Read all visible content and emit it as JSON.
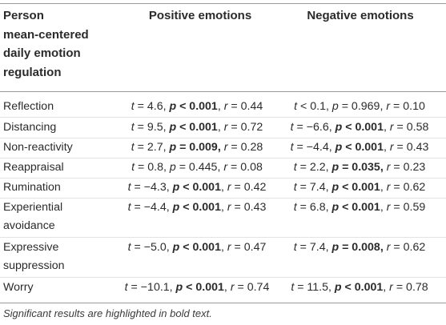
{
  "table": {
    "header": {
      "label_lines": [
        "Person",
        "mean-centered",
        "daily emotion",
        "regulation"
      ],
      "positive": "Positive emotions",
      "negative": "Negative emotions"
    },
    "rows": [
      {
        "label": "Reflection",
        "positive": {
          "t_op": "=",
          "t": "4.6",
          "p_op": "<",
          "p": "0.001",
          "p_bold": true,
          "r": "0.44"
        },
        "negative": {
          "t_op": "<",
          "t": "0.1",
          "p_op": "=",
          "p": "0.969",
          "p_bold": false,
          "r": "0.10"
        }
      },
      {
        "label": "Distancing",
        "positive": {
          "t_op": "=",
          "t": "9.5",
          "p_op": "<",
          "p": "0.001",
          "p_bold": true,
          "r": "0.72"
        },
        "negative": {
          "t_op": "=",
          "t": "−6.6",
          "p_op": "<",
          "p": "0.001",
          "p_bold": true,
          "r": "0.58"
        }
      },
      {
        "label": "Non-reactivity",
        "positive": {
          "t_op": "=",
          "t": "2.7",
          "p_op": "=",
          "p": "0.009,",
          "p_bold": true,
          "r": "0.28"
        },
        "negative": {
          "t_op": "=",
          "t": "−4.4",
          "p_op": "<",
          "p": "0.001",
          "p_bold": true,
          "r": "0.43"
        }
      },
      {
        "label": "Reappraisal",
        "positive": {
          "t_op": "=",
          "t": "0.8",
          "p_op": "=",
          "p": "0.445",
          "p_bold": false,
          "r": "0.08"
        },
        "negative": {
          "t_op": "=",
          "t": "2.2",
          "p_op": "=",
          "p": "0.035,",
          "p_bold": true,
          "r": "0.23"
        }
      },
      {
        "label": "Rumination",
        "positive": {
          "t_op": "=",
          "t": "−4.3",
          "p_op": "<",
          "p": "0.001",
          "p_bold": true,
          "r": "0.42"
        },
        "negative": {
          "t_op": "=",
          "t": "7.4",
          "p_op": "<",
          "p": "0.001",
          "p_bold": true,
          "r": "0.62"
        }
      },
      {
        "label": "Experiential avoidance",
        "positive": {
          "t_op": "=",
          "t": "−4.4",
          "p_op": "<",
          "p": "0.001",
          "p_bold": true,
          "r": "0.43"
        },
        "negative": {
          "t_op": "=",
          "t": "6.8",
          "p_op": "<",
          "p": "0.001",
          "p_bold": true,
          "r": "0.59"
        }
      },
      {
        "label": "Expressive suppression",
        "positive": {
          "t_op": "=",
          "t": "−5.0",
          "p_op": "<",
          "p": "0.001",
          "p_bold": true,
          "r": "0.47"
        },
        "negative": {
          "t_op": "=",
          "t": "7.4",
          "p_op": "=",
          "p": "0.008,",
          "p_bold": true,
          "r": "0.62"
        }
      },
      {
        "label": "Worry",
        "positive": {
          "t_op": "=",
          "t": "−10.1",
          "p_op": "<",
          "p": "0.001",
          "p_bold": true,
          "r": "0.74"
        },
        "negative": {
          "t_op": "=",
          "t": "11.5",
          "p_op": "<",
          "p": "0.001",
          "p_bold": true,
          "r": "0.78"
        }
      }
    ],
    "note": "Significant results are highlighted in bold text."
  }
}
